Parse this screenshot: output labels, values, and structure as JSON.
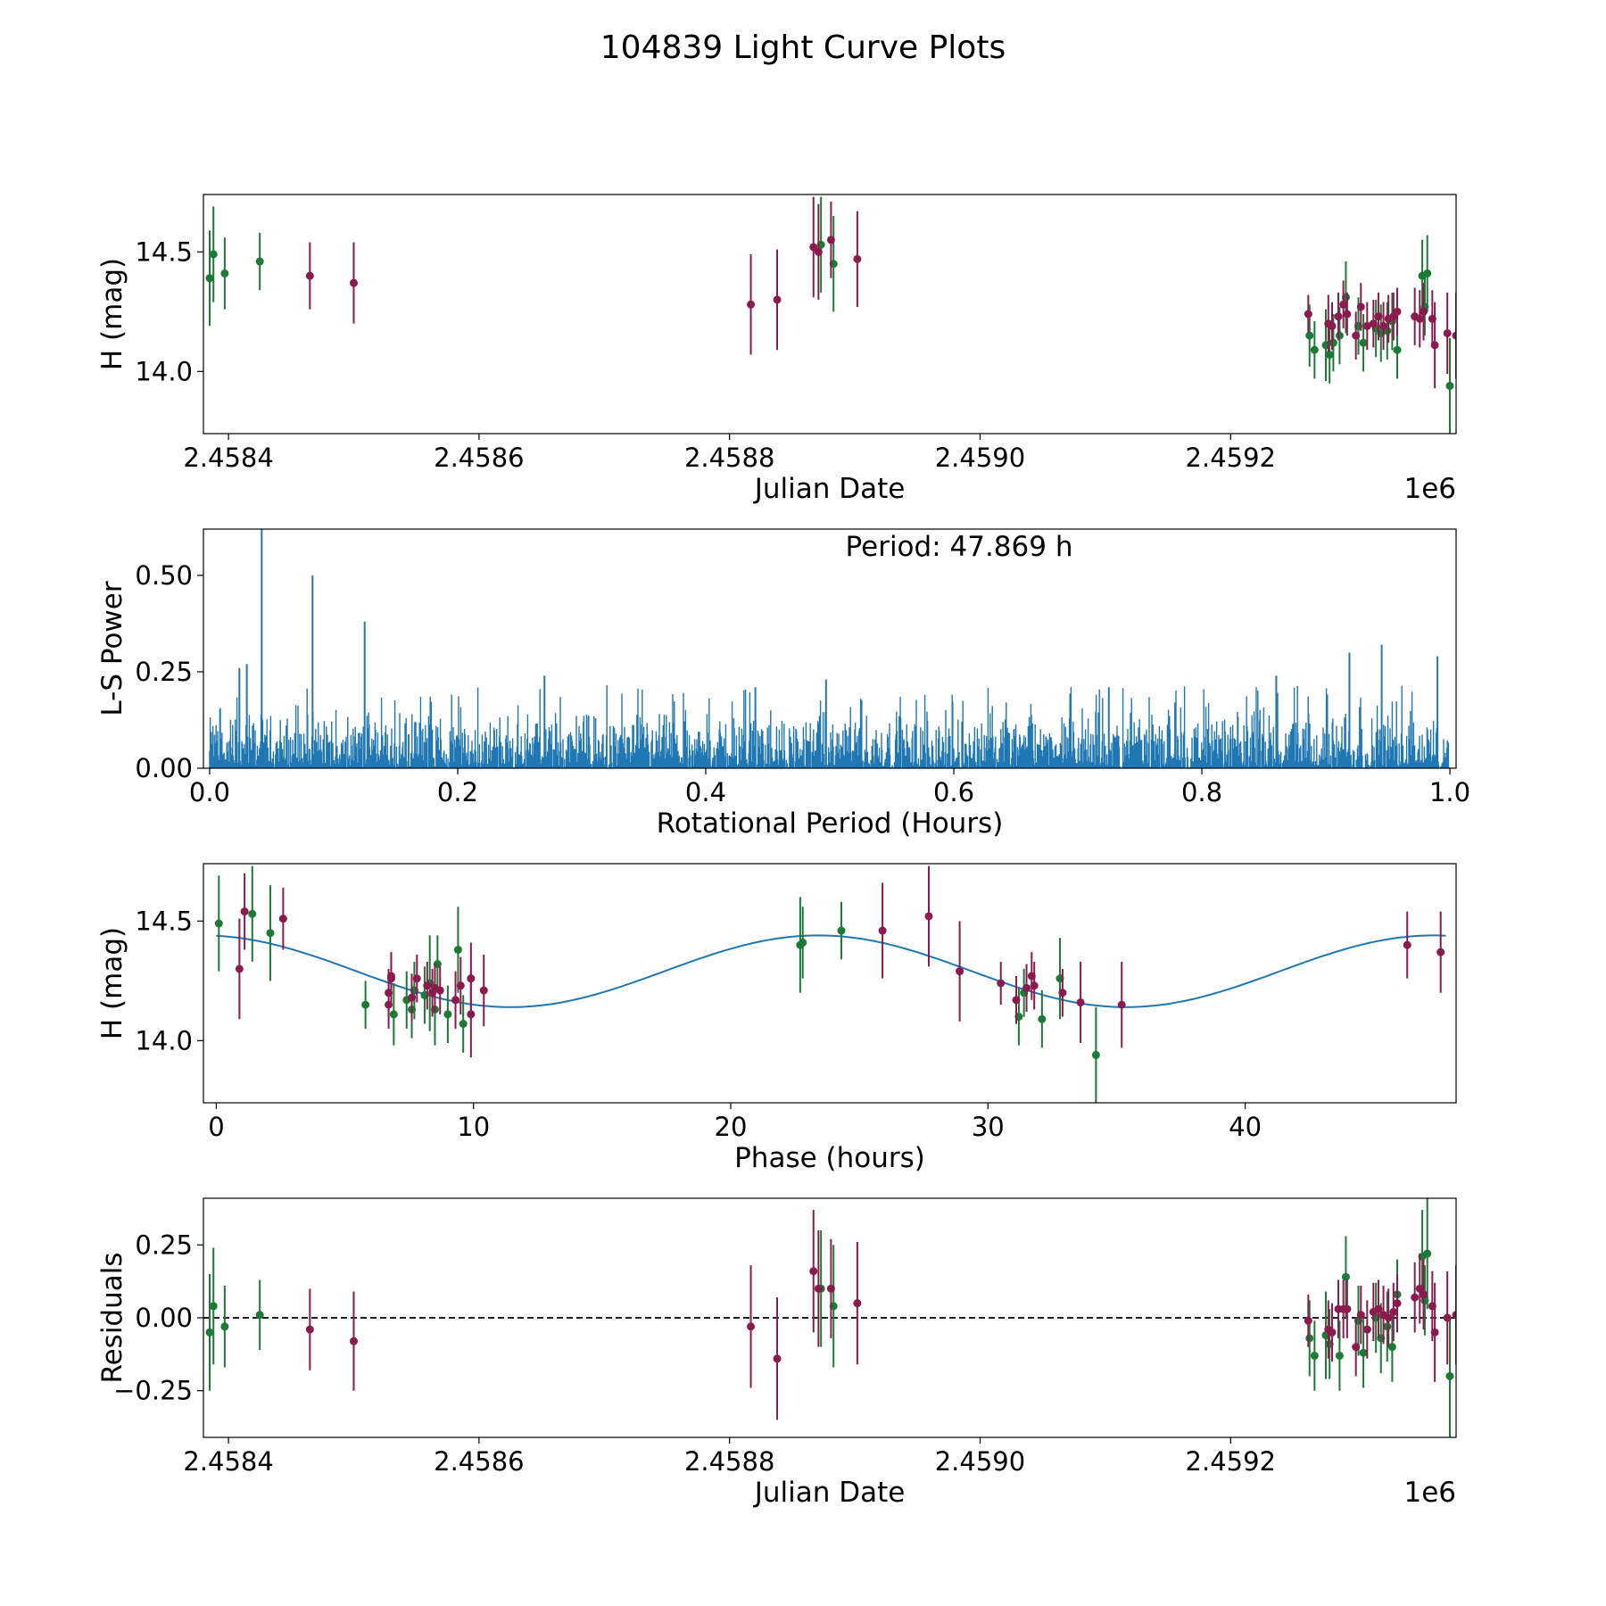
{
  "figure_title": "104839 Light Curve Plots",
  "colors": {
    "red_band": "#8b1a4e",
    "green_band": "#1b7a35",
    "model": "#1f77b4",
    "zero_line": "#000000"
  },
  "chart_data": [
    {
      "id": "lightcurve",
      "type": "scatter",
      "xlabel": "Julian Date",
      "ylabel": "H (mag)",
      "offset_label": "1e6",
      "xlim": [
        2.45838,
        2.45938
      ],
      "ylim": [
        13.74,
        14.74
      ],
      "xticks": [
        2.4584,
        2.4586,
        2.4588,
        2.459,
        2.4592
      ],
      "xtick_labels": [
        "2.4584",
        "2.4586",
        "2.4588",
        "2.4590",
        "2.4592"
      ],
      "yticks": [
        14.0,
        14.5
      ],
      "ytick_labels": [
        "14.0",
        "14.5"
      ],
      "series": [
        {
          "name": "green",
          "points": [
            [
              2.458385,
              14.39,
              0.2
            ],
            [
              2.458388,
              14.49,
              0.2
            ],
            [
              2.458397,
              14.41,
              0.15
            ],
            [
              2.458425,
              14.46,
              0.12
            ],
            [
              2.458873,
              14.53,
              0.2
            ],
            [
              2.458883,
              14.45,
              0.2
            ],
            [
              2.459263,
              14.15,
              0.13
            ],
            [
              2.459267,
              14.09,
              0.12
            ],
            [
              2.459276,
              14.11,
              0.15
            ],
            [
              2.459279,
              14.07,
              0.12
            ],
            [
              2.459282,
              14.12,
              0.12
            ],
            [
              2.459287,
              14.15,
              0.12
            ],
            [
              2.459292,
              14.31,
              0.15
            ],
            [
              2.459302,
              14.19,
              0.12
            ],
            [
              2.459306,
              14.12,
              0.12
            ],
            [
              2.459316,
              14.18,
              0.12
            ],
            [
              2.45932,
              14.16,
              0.12
            ],
            [
              2.459325,
              14.17,
              0.12
            ],
            [
              2.459329,
              14.21,
              0.12
            ],
            [
              2.459333,
              14.09,
              0.12
            ],
            [
              2.459353,
              14.4,
              0.15
            ],
            [
              2.459355,
              14.27,
              0.12
            ],
            [
              2.459357,
              14.41,
              0.16
            ],
            [
              2.459375,
              13.94,
              0.2
            ]
          ]
        },
        {
          "name": "red",
          "points": [
            [
              2.458465,
              14.4,
              0.14
            ],
            [
              2.4585,
              14.37,
              0.17
            ],
            [
              2.458817,
              14.28,
              0.21
            ],
            [
              2.458838,
              14.3,
              0.21
            ],
            [
              2.458867,
              14.52,
              0.21
            ],
            [
              2.458871,
              14.5,
              0.2
            ],
            [
              2.458881,
              14.55,
              0.16
            ],
            [
              2.458902,
              14.47,
              0.2
            ],
            [
              2.459262,
              14.24,
              0.08
            ],
            [
              2.459278,
              14.2,
              0.12
            ],
            [
              2.459281,
              14.19,
              0.1
            ],
            [
              2.459286,
              14.23,
              0.1
            ],
            [
              2.45929,
              14.28,
              0.1
            ],
            [
              2.459293,
              14.24,
              0.09
            ],
            [
              2.4593,
              14.15,
              0.1
            ],
            [
              2.459304,
              14.27,
              0.1
            ],
            [
              2.459309,
              14.19,
              0.1
            ],
            [
              2.459314,
              14.2,
              0.1
            ],
            [
              2.459318,
              14.23,
              0.1
            ],
            [
              2.459322,
              14.19,
              0.1
            ],
            [
              2.459326,
              14.22,
              0.1
            ],
            [
              2.45933,
              14.23,
              0.1
            ],
            [
              2.459333,
              14.25,
              0.1
            ],
            [
              2.459347,
              14.23,
              0.12
            ],
            [
              2.459351,
              14.22,
              0.12
            ],
            [
              2.459354,
              14.25,
              0.12
            ],
            [
              2.459361,
              14.22,
              0.12
            ],
            [
              2.459363,
              14.11,
              0.18
            ],
            [
              2.459373,
              14.16,
              0.17
            ],
            [
              2.45938,
              14.15,
              0.18
            ]
          ]
        }
      ]
    },
    {
      "id": "periodogram",
      "type": "line",
      "xlabel": "Rotational Period (Hours)",
      "ylabel": "L-S Power",
      "annotation": "Period: 47.869 h",
      "xlim": [
        -0.005,
        1.005
      ],
      "ylim": [
        0.0,
        0.62
      ],
      "xticks": [
        0.0,
        0.2,
        0.4,
        0.6,
        0.8,
        1.0
      ],
      "xtick_labels": [
        "0.0",
        "0.2",
        "0.4",
        "0.6",
        "0.8",
        "1.0"
      ],
      "yticks": [
        0.0,
        0.25,
        0.5
      ],
      "ytick_labels": [
        "0.00",
        "0.25",
        "0.50"
      ],
      "x_range": [
        0.0,
        1.0
      ],
      "typical_power": 0.12,
      "peaks": [
        [
          0.042,
          0.62
        ],
        [
          0.083,
          0.5
        ],
        [
          0.125,
          0.38
        ],
        [
          0.024,
          0.26
        ],
        [
          0.03,
          0.27
        ],
        [
          0.27,
          0.24
        ],
        [
          0.44,
          0.21
        ],
        [
          0.497,
          0.23
        ],
        [
          0.725,
          0.21
        ],
        [
          0.86,
          0.24
        ],
        [
          0.919,
          0.3
        ],
        [
          0.945,
          0.32
        ],
        [
          0.99,
          0.29
        ]
      ]
    },
    {
      "id": "phasefold",
      "type": "scatter",
      "xlabel": "Phase (hours)",
      "ylabel": "H (mag)",
      "xlim": [
        -0.5,
        48.2
      ],
      "ylim": [
        13.74,
        14.74
      ],
      "xticks": [
        0,
        10,
        20,
        30,
        40
      ],
      "xtick_labels": [
        "0",
        "10",
        "20",
        "30",
        "40"
      ],
      "yticks": [
        14.0,
        14.5
      ],
      "ytick_labels": [
        "14.0",
        "14.5"
      ],
      "model": {
        "mean": 14.29,
        "amplitude": 0.15,
        "period": 23.93,
        "peak_phase": 23.4,
        "x_range": [
          0,
          47.9
        ]
      },
      "series": [
        {
          "name": "green",
          "points": [
            [
              0.1,
              14.49,
              0.2
            ],
            [
              1.4,
              14.53,
              0.2
            ],
            [
              2.1,
              14.45,
              0.2
            ],
            [
              5.8,
              14.15,
              0.1
            ],
            [
              6.9,
              14.11,
              0.13
            ],
            [
              7.4,
              14.17,
              0.12
            ],
            [
              7.6,
              14.13,
              0.12
            ],
            [
              7.7,
              14.21,
              0.12
            ],
            [
              8.1,
              14.19,
              0.12
            ],
            [
              8.3,
              14.24,
              0.2
            ],
            [
              8.5,
              14.13,
              0.15
            ],
            [
              8.6,
              14.32,
              0.12
            ],
            [
              9.0,
              14.11,
              0.12
            ],
            [
              9.4,
              14.38,
              0.18
            ],
            [
              9.6,
              14.07,
              0.12
            ],
            [
              22.7,
              14.4,
              0.2
            ],
            [
              22.8,
              14.41,
              0.15
            ],
            [
              24.3,
              14.46,
              0.12
            ],
            [
              31.2,
              14.1,
              0.12
            ],
            [
              31.4,
              14.2,
              0.1
            ],
            [
              32.1,
              14.09,
              0.12
            ],
            [
              32.8,
              14.26,
              0.17
            ],
            [
              34.2,
              13.94,
              0.2
            ]
          ]
        },
        {
          "name": "red",
          "points": [
            [
              0.9,
              14.3,
              0.21
            ],
            [
              1.1,
              14.54,
              0.16
            ],
            [
              2.6,
              14.51,
              0.13
            ],
            [
              6.7,
              14.15,
              0.1
            ],
            [
              6.7,
              14.2,
              0.1
            ],
            [
              6.8,
              14.27,
              0.1
            ],
            [
              6.8,
              14.26,
              0.1
            ],
            [
              7.6,
              14.18,
              0.1
            ],
            [
              7.8,
              14.26,
              0.1
            ],
            [
              8.2,
              14.23,
              0.1
            ],
            [
              8.4,
              14.2,
              0.1
            ],
            [
              8.5,
              14.22,
              0.1
            ],
            [
              8.7,
              14.21,
              0.1
            ],
            [
              9.3,
              14.17,
              0.12
            ],
            [
              9.5,
              14.23,
              0.12
            ],
            [
              9.9,
              14.11,
              0.18
            ],
            [
              9.9,
              14.26,
              0.15
            ],
            [
              10.4,
              14.21,
              0.15
            ],
            [
              25.9,
              14.46,
              0.2
            ],
            [
              27.7,
              14.52,
              0.21
            ],
            [
              28.9,
              14.29,
              0.21
            ],
            [
              30.5,
              14.24,
              0.09
            ],
            [
              31.1,
              14.17,
              0.1
            ],
            [
              31.5,
              14.22,
              0.1
            ],
            [
              31.7,
              14.27,
              0.1
            ],
            [
              31.8,
              14.23,
              0.1
            ],
            [
              32.9,
              14.2,
              0.1
            ],
            [
              33.6,
              14.16,
              0.17
            ],
            [
              35.2,
              14.15,
              0.18
            ],
            [
              46.3,
              14.4,
              0.14
            ],
            [
              47.6,
              14.37,
              0.17
            ]
          ]
        }
      ]
    },
    {
      "id": "residuals",
      "type": "scatter",
      "xlabel": "Julian Date",
      "ylabel": "Residuals",
      "offset_label": "1e6",
      "xlim": [
        2.45838,
        2.45938
      ],
      "ylim": [
        -0.41,
        0.41
      ],
      "xticks": [
        2.4584,
        2.4586,
        2.4588,
        2.459,
        2.4592
      ],
      "xtick_labels": [
        "2.4584",
        "2.4586",
        "2.4588",
        "2.4590",
        "2.4592"
      ],
      "yticks": [
        -0.25,
        0.0,
        0.25
      ],
      "ytick_labels": [
        "−0.25",
        "0.00",
        "0.25"
      ],
      "zero_line": 0.0,
      "series": [
        {
          "name": "green",
          "points": [
            [
              2.458385,
              -0.05,
              0.2
            ],
            [
              2.458388,
              0.04,
              0.2
            ],
            [
              2.458397,
              -0.03,
              0.14
            ],
            [
              2.458425,
              0.01,
              0.12
            ],
            [
              2.458873,
              0.1,
              0.2
            ],
            [
              2.458883,
              0.04,
              0.21
            ],
            [
              2.459263,
              -0.07,
              0.13
            ],
            [
              2.459267,
              -0.13,
              0.12
            ],
            [
              2.459276,
              -0.06,
              0.15
            ],
            [
              2.459279,
              -0.09,
              0.12
            ],
            [
              2.459287,
              -0.13,
              0.12
            ],
            [
              2.459292,
              0.14,
              0.14
            ],
            [
              2.459302,
              -0.01,
              0.12
            ],
            [
              2.459306,
              -0.12,
              0.12
            ],
            [
              2.459316,
              0.0,
              0.12
            ],
            [
              2.45932,
              -0.07,
              0.12
            ],
            [
              2.459325,
              -0.03,
              0.12
            ],
            [
              2.459329,
              -0.1,
              0.12
            ],
            [
              2.459333,
              0.08,
              0.12
            ],
            [
              2.459353,
              0.21,
              0.16
            ],
            [
              2.459355,
              0.06,
              0.12
            ],
            [
              2.459357,
              0.22,
              0.19
            ],
            [
              2.459375,
              -0.2,
              0.21
            ]
          ]
        },
        {
          "name": "red",
          "points": [
            [
              2.458465,
              -0.04,
              0.14
            ],
            [
              2.4585,
              -0.08,
              0.17
            ],
            [
              2.458817,
              -0.03,
              0.21
            ],
            [
              2.458838,
              -0.14,
              0.21
            ],
            [
              2.458867,
              0.16,
              0.21
            ],
            [
              2.458871,
              0.1,
              0.2
            ],
            [
              2.458881,
              0.1,
              0.17
            ],
            [
              2.458902,
              0.05,
              0.21
            ],
            [
              2.459262,
              -0.01,
              0.09
            ],
            [
              2.459278,
              -0.04,
              0.1
            ],
            [
              2.459281,
              -0.05,
              0.1
            ],
            [
              2.459286,
              0.03,
              0.1
            ],
            [
              2.45929,
              0.03,
              0.1
            ],
            [
              2.459293,
              0.03,
              0.1
            ],
            [
              2.4593,
              -0.1,
              0.1
            ],
            [
              2.459304,
              0.01,
              0.1
            ],
            [
              2.459309,
              -0.04,
              0.1
            ],
            [
              2.459314,
              0.02,
              0.1
            ],
            [
              2.459318,
              0.03,
              0.1
            ],
            [
              2.459322,
              0.01,
              0.1
            ],
            [
              2.459326,
              0.0,
              0.1
            ],
            [
              2.45933,
              0.02,
              0.1
            ],
            [
              2.459333,
              0.05,
              0.1
            ],
            [
              2.459347,
              0.07,
              0.12
            ],
            [
              2.459351,
              0.1,
              0.12
            ],
            [
              2.459354,
              0.08,
              0.12
            ],
            [
              2.459361,
              0.04,
              0.12
            ],
            [
              2.459363,
              -0.05,
              0.17
            ],
            [
              2.459373,
              0.0,
              0.16
            ],
            [
              2.45938,
              0.01,
              0.17
            ]
          ]
        }
      ]
    }
  ]
}
